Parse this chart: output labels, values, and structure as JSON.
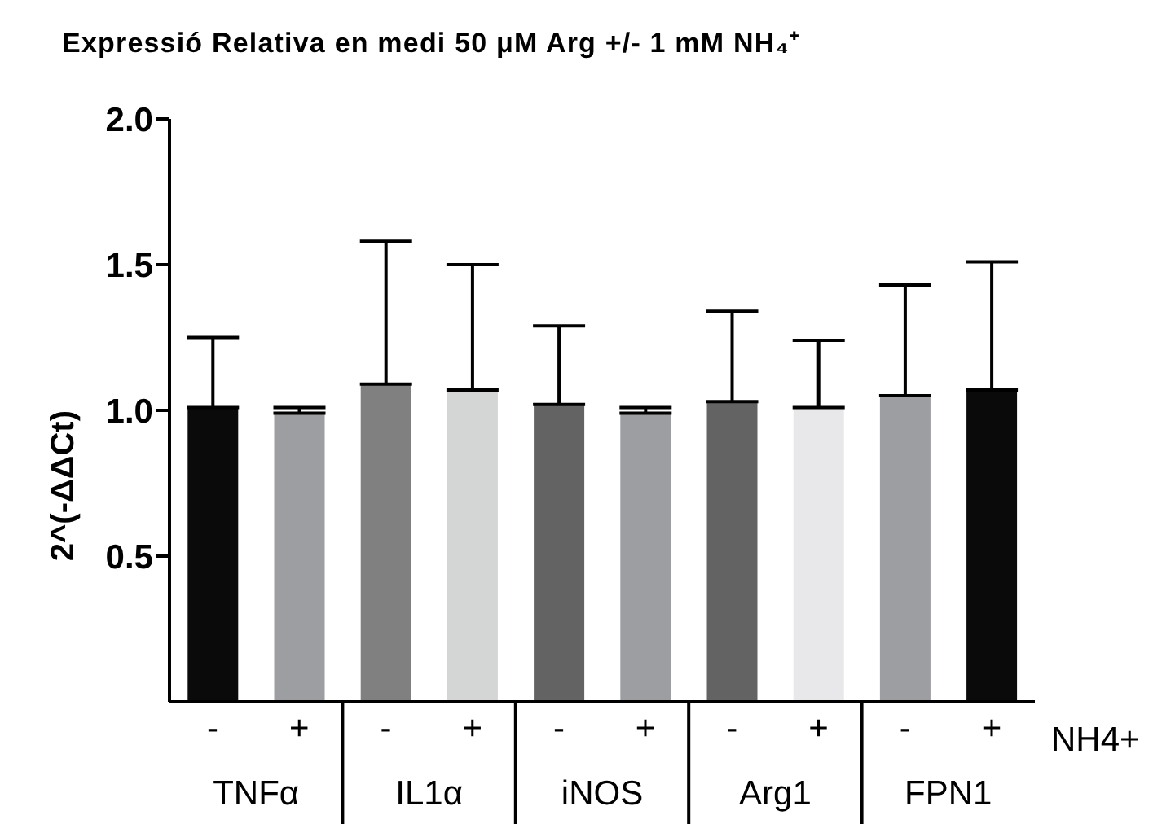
{
  "chart_data": {
    "type": "bar",
    "title": "Expressió Relativa en medi 50 μM Arg +/- 1 mM NH₄⁺",
    "ylabel": "2^(-ΔΔCt)",
    "categories": [
      "-",
      "+",
      "-",
      "+",
      "-",
      "+",
      "-",
      "+",
      "-",
      "+"
    ],
    "values": [
      1.01,
      0.99,
      1.09,
      1.07,
      1.02,
      0.99,
      1.03,
      1.01,
      1.05,
      1.07
    ],
    "errors": [
      [
        1.01,
        1.25
      ],
      [
        0.99,
        1.01
      ],
      [
        1.09,
        1.58
      ],
      [
        1.07,
        1.5
      ],
      [
        1.02,
        1.29
      ],
      [
        0.99,
        1.01
      ],
      [
        1.03,
        1.34
      ],
      [
        1.01,
        1.24
      ],
      [
        1.05,
        1.43
      ],
      [
        1.07,
        1.51
      ]
    ],
    "colors": [
      "#0a0a0a",
      "#9d9ea2",
      "#7f807f",
      "#d4d5d5",
      "#636363",
      "#9d9ea2",
      "#636363",
      "#e8e8ea",
      "#9d9ea2",
      "#0a0a0a"
    ],
    "ylim": [
      0,
      2
    ],
    "yticks": [
      0.5,
      {
        "value": 1,
        "label": "1.0"
      },
      1.5,
      {
        "value": 2,
        "label": "2.0"
      }
    ],
    "grid": false,
    "legend": false,
    "annotations": [
      "TNFα",
      "IL1α",
      "iNOS",
      "Arg1",
      "FPN1",
      "NH4+"
    ]
  }
}
